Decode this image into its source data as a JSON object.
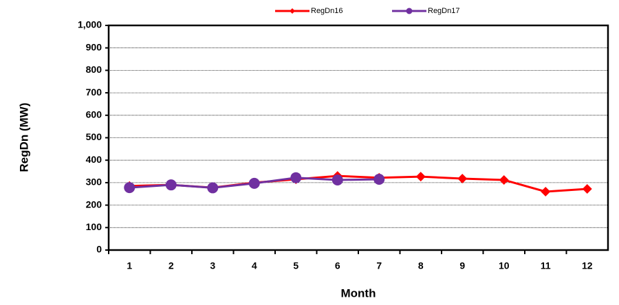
{
  "chart_data": {
    "type": "line",
    "x_label": "Month",
    "y_label": "RegDn (MW)",
    "categories": [
      "1",
      "2",
      "3",
      "4",
      "5",
      "6",
      "7",
      "8",
      "9",
      "10",
      "11",
      "12"
    ],
    "series": [
      {
        "name": "RegDn16",
        "color": "#ff0000",
        "marker": "diamond",
        "values": [
          285,
          290,
          278,
          300,
          315,
          330,
          322,
          327,
          318,
          312,
          260,
          272
        ]
      },
      {
        "name": "RegDn17",
        "color": "#7030a0",
        "marker": "circle",
        "values": [
          278,
          290,
          277,
          297,
          322,
          312,
          315,
          null,
          null,
          null,
          null,
          null
        ]
      }
    ],
    "ylim": [
      0,
      1000
    ],
    "yticks": [
      0,
      100,
      200,
      300,
      400,
      500,
      600,
      700,
      800,
      900,
      {
        "value": 1000,
        "label": "1,000"
      }
    ],
    "grid": true,
    "legend": "top"
  }
}
